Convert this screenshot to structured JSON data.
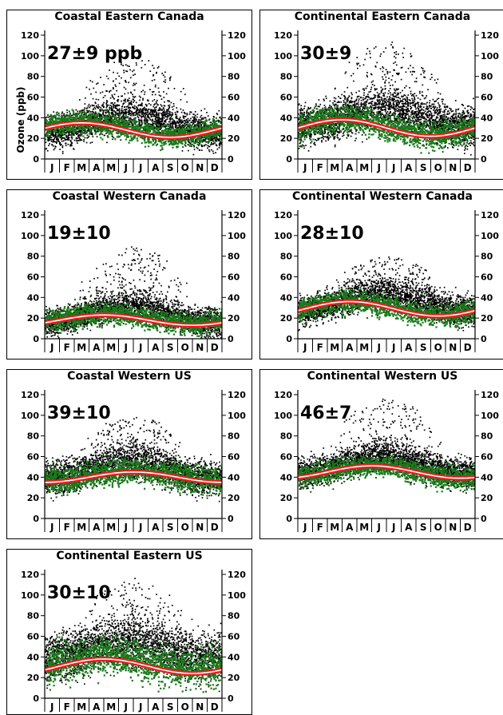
{
  "figure": {
    "ylabel": "Ozone (ppb)",
    "months": [
      "J",
      "F",
      "M",
      "A",
      "M",
      "J",
      "J",
      "A",
      "S",
      "O",
      "N",
      "D"
    ],
    "colors": {
      "observed": "#000000",
      "modeled": "#1a7a1a",
      "fit_outer": "#e02020",
      "fit_inner": "#ffffff"
    }
  },
  "chart_data": [
    {
      "type": "scatter",
      "title": "Coastal Eastern Canada",
      "annotation": "27±9 ppb",
      "ylim": [
        0,
        120
      ],
      "yticks": [
        0,
        20,
        40,
        60,
        80,
        100,
        120
      ],
      "fit": {
        "mean": 28,
        "amplitude": 7,
        "peak_month": 2.5
      },
      "observed": {
        "center": 32,
        "spread": 18,
        "summer_max": 100
      },
      "modeled": {
        "center": 30,
        "spread": 10
      }
    },
    {
      "type": "scatter",
      "title": "Continental Eastern Canada",
      "annotation": "30±9",
      "ylim": [
        0,
        120
      ],
      "yticks": [
        0,
        20,
        40,
        60,
        80,
        100,
        120
      ],
      "fit": {
        "mean": 30,
        "amplitude": 8,
        "peak_month": 3.0
      },
      "observed": {
        "center": 38,
        "spread": 22,
        "summer_max": 115
      },
      "modeled": {
        "center": 32,
        "spread": 12
      }
    },
    {
      "type": "scatter",
      "title": "Coastal Western Canada",
      "annotation": "19±10",
      "ylim": [
        0,
        120
      ],
      "yticks": [
        0,
        20,
        40,
        60,
        80,
        100,
        120
      ],
      "fit": {
        "mean": 18,
        "amplitude": 5,
        "peak_month": 4.0
      },
      "observed": {
        "center": 22,
        "spread": 15,
        "summer_max": 90
      },
      "modeled": {
        "center": 20,
        "spread": 10
      }
    },
    {
      "type": "scatter",
      "title": "Continental Western Canada",
      "annotation": "28±10",
      "ylim": [
        0,
        120
      ],
      "yticks": [
        0,
        20,
        40,
        60,
        80,
        100,
        120
      ],
      "fit": {
        "mean": 29,
        "amplitude": 7,
        "peak_month": 3.5
      },
      "observed": {
        "center": 34,
        "spread": 16,
        "summer_max": 80
      },
      "modeled": {
        "center": 30,
        "spread": 10
      }
    },
    {
      "type": "scatter",
      "title": "Coastal Western US",
      "annotation": "39±10",
      "ylim": [
        0,
        120
      ],
      "yticks": [
        0,
        20,
        40,
        60,
        80,
        100,
        120
      ],
      "fit": {
        "mean": 40,
        "amplitude": 5,
        "peak_month": 6.0
      },
      "observed": {
        "center": 45,
        "spread": 18,
        "summer_max": 100
      },
      "modeled": {
        "center": 42,
        "spread": 12
      }
    },
    {
      "type": "scatter",
      "title": "Continental Western US",
      "annotation": "46±7",
      "ylim": [
        0,
        120
      ],
      "yticks": [
        0,
        20,
        40,
        60,
        80,
        100,
        120
      ],
      "fit": {
        "mean": 45,
        "amplitude": 6,
        "peak_month": 5.0
      },
      "observed": {
        "center": 50,
        "spread": 16,
        "summer_max": 118
      },
      "modeled": {
        "center": 46,
        "spread": 10
      }
    },
    {
      "type": "scatter",
      "title": "Continental Eastern US",
      "annotation": "30±10",
      "ylim": [
        0,
        120
      ],
      "yticks": [
        0,
        20,
        40,
        60,
        80,
        100,
        120
      ],
      "fit": {
        "mean": 31,
        "amplitude": 7,
        "peak_month": 4.0
      },
      "observed": {
        "center": 45,
        "spread": 25,
        "summer_max": 118
      },
      "modeled": {
        "center": 36,
        "spread": 18
      }
    }
  ]
}
